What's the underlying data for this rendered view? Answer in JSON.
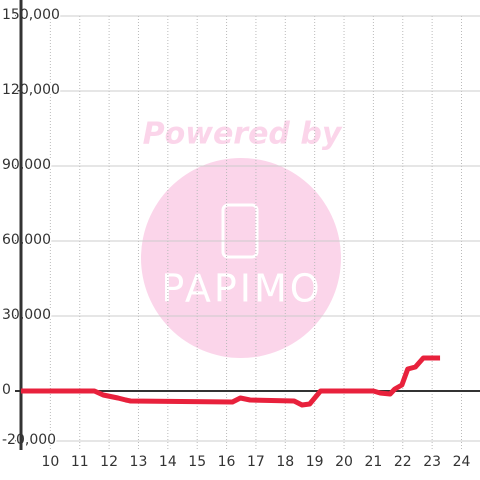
{
  "chart_data": {
    "type": "line",
    "watermark": {
      "top": "Powered by",
      "logo": "PAPIMO"
    },
    "x": [
      9,
      11.5,
      11.8,
      12.3,
      12.57,
      12.73,
      16.2,
      16.47,
      16.8,
      18.3,
      18.57,
      18.83,
      19.2,
      21,
      21.23,
      21.57,
      21.73,
      21.97,
      22.17,
      22.43,
      22.7,
      23.27
    ],
    "series": [
      {
        "color": "#e8213c",
        "values": [
          0,
          0,
          -1600,
          -2800,
          -3600,
          -4000,
          -4400,
          -2800,
          -3600,
          -4000,
          -5600,
          -5200,
          0,
          0,
          -800,
          -1200,
          800,
          2400,
          8800,
          9600,
          13200,
          13200
        ]
      }
    ],
    "xlim": [
      9,
      24.63
    ],
    "xticks": [
      10,
      11,
      12,
      13,
      14,
      15,
      16,
      17,
      18,
      19,
      20,
      21,
      22,
      23,
      24
    ],
    "ylim": [
      -23600,
      150000
    ],
    "yticks": [
      {
        "value": -20000,
        "label": "-20,000"
      },
      0,
      {
        "value": 30000,
        "label": "30,000"
      },
      {
        "value": 60000,
        "label": "60,000"
      },
      {
        "value": 90000,
        "label": "90,000"
      },
      {
        "value": 120000,
        "label": "120,000"
      },
      {
        "value": 150000,
        "label": "150,000"
      }
    ],
    "grid": true
  }
}
